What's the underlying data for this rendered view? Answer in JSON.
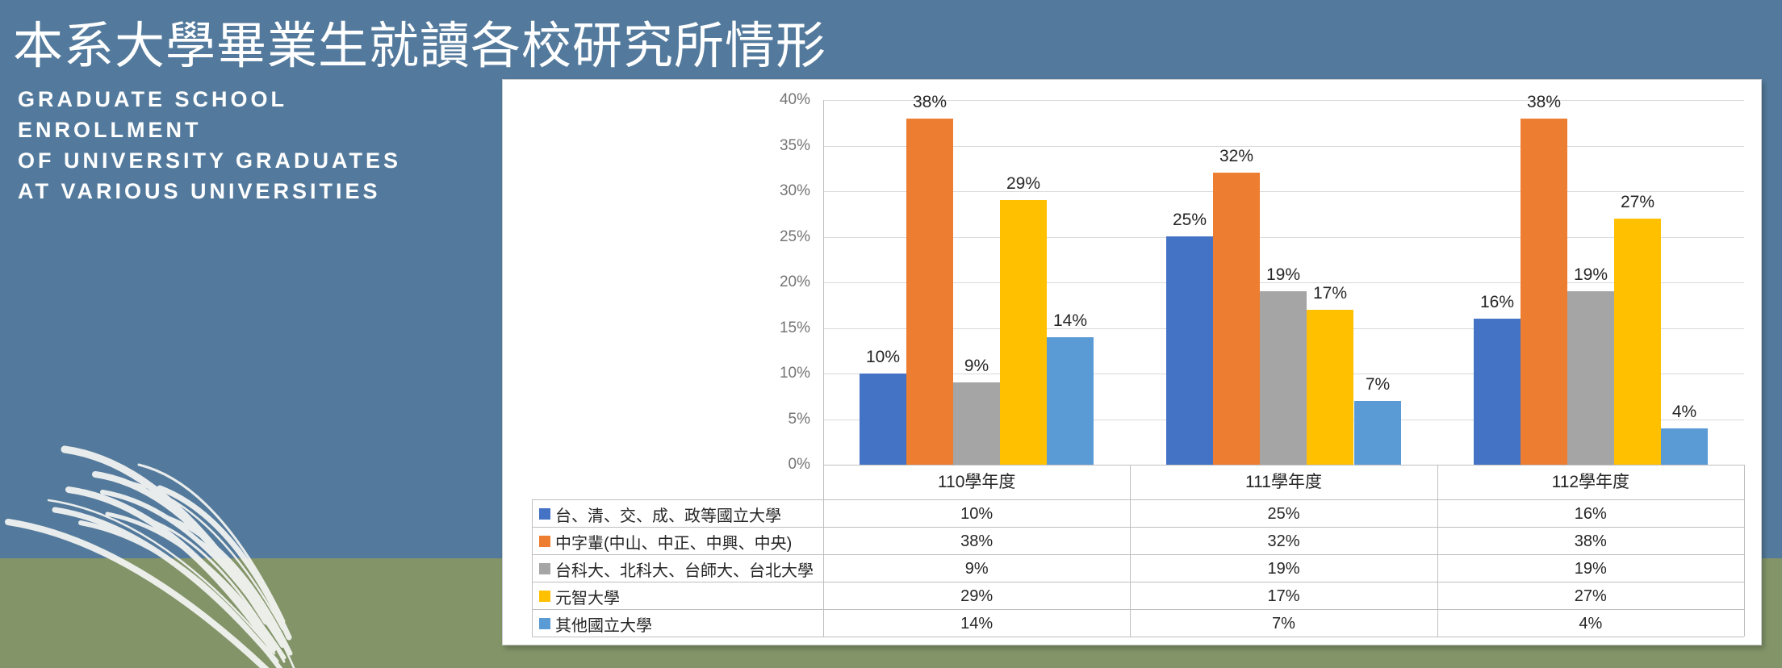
{
  "slide": {
    "title": "本系大學畢業生就讀各校研究所情形",
    "subtitle_lines": [
      "GRADUATE SCHOOL",
      "ENROLLMENT",
      "OF UNIVERSITY GRADUATES",
      "AT VARIOUS UNIVERSITIES"
    ]
  },
  "colors": {
    "background_top": "#537a9c",
    "background_bottom": "#829468",
    "panel": "#ffffff",
    "gridline": "#d9d9d9",
    "axis_line": "#bfbfbf",
    "table_border": "#bfbfbf",
    "axis_text": "#757575",
    "label_text": "#262626",
    "decoration": "#f2f3f1"
  },
  "chart_data": {
    "type": "bar",
    "categories": [
      "110學年度",
      "111學年度",
      "112學年度"
    ],
    "series": [
      {
        "name": "台、清、交、成、政等國立大學",
        "color": "#4472c4",
        "values": [
          10,
          25,
          16
        ]
      },
      {
        "name": "中字輩(中山、中正、中興、中央)",
        "color": "#ed7d31",
        "values": [
          38,
          32,
          38
        ]
      },
      {
        "name": "台科大、北科大、台師大、台北大學",
        "color": "#a5a5a5",
        "values": [
          9,
          19,
          19
        ]
      },
      {
        "name": "元智大學",
        "color": "#ffc000",
        "values": [
          29,
          17,
          27
        ]
      },
      {
        "name": "其他國立大學",
        "color": "#5b9bd5",
        "values": [
          14,
          7,
          4
        ]
      }
    ],
    "value_suffix": "%",
    "ylim": [
      0,
      40
    ],
    "ytick_step": 5,
    "ytick_labels": [
      "0%",
      "5%",
      "10%",
      "15%",
      "20%",
      "25%",
      "30%",
      "35%",
      "40%"
    ],
    "grid": true,
    "data_labels": true,
    "data_table": true,
    "legend_position": "table-left"
  }
}
